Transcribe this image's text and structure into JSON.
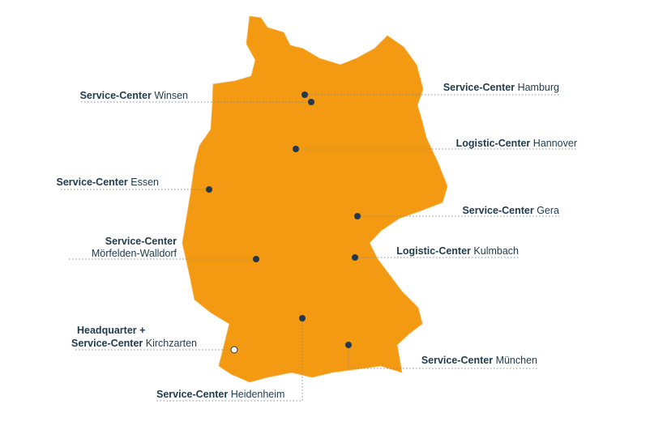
{
  "locations": [
    {
      "type": "Service-Center",
      "city": "Winsen"
    },
    {
      "type": "Service-Center",
      "city": "Hamburg"
    },
    {
      "type": "Logistic-Center",
      "city": "Hannover"
    },
    {
      "type": "Service-Center",
      "city": "Essen"
    },
    {
      "type": "Service-Center",
      "city": "Gera"
    },
    {
      "type": "Service-Center",
      "city": "Mörfelden-Walldorf"
    },
    {
      "type": "Logistic-Center",
      "city": "Kulmbach"
    },
    {
      "prefix": "Headquarter +",
      "type": "Service-Center",
      "city": "Kirchzarten"
    },
    {
      "type": "Service-Center",
      "city": "München"
    },
    {
      "type": "Service-Center",
      "city": "Heidenheim"
    }
  ]
}
